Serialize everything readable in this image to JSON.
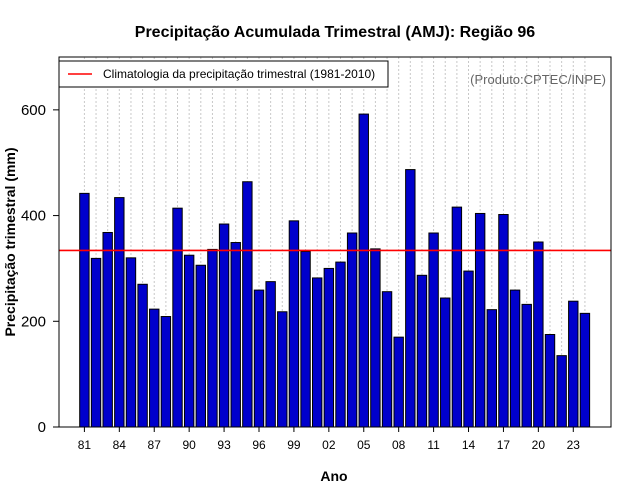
{
  "chart_data": {
    "type": "bar",
    "title": "Precipitação Acumulada Trimestral (AMJ): Região 96",
    "xlabel": "Ano",
    "ylabel": "Precipitação trimestral (mm)",
    "credit": "(Produto:CPTEC/INPE)",
    "ylim": [
      0,
      700
    ],
    "yticks": [
      0,
      200,
      400,
      600
    ],
    "ytick_labels": [
      "0",
      "200",
      "400",
      "600"
    ],
    "xtick_labels": [
      "81",
      "84",
      "87",
      "90",
      "93",
      "96",
      "99",
      "02",
      "05",
      "08",
      "11",
      "14",
      "17",
      "20",
      "23"
    ],
    "xtick_every": 3,
    "categories": [
      "81",
      "82",
      "83",
      "84",
      "85",
      "86",
      "87",
      "88",
      "89",
      "90",
      "91",
      "92",
      "93",
      "94",
      "95",
      "96",
      "97",
      "98",
      "99",
      "00",
      "01",
      "02",
      "03",
      "04",
      "05",
      "06",
      "07",
      "08",
      "09",
      "10",
      "11",
      "12",
      "13",
      "14",
      "15",
      "16",
      "17",
      "18",
      "19",
      "20",
      "21",
      "22",
      "23",
      "24"
    ],
    "values": [
      442,
      319,
      368,
      434,
      320,
      270,
      223,
      209,
      414,
      325,
      306,
      336,
      384,
      349,
      464,
      259,
      275,
      218,
      390,
      332,
      282,
      300,
      312,
      367,
      592,
      337,
      256,
      170,
      487,
      287,
      367,
      244,
      416,
      295,
      404,
      222,
      402,
      259,
      232,
      350,
      175,
      135,
      238,
      215
    ],
    "bar_color": "#0000CC",
    "climatology": {
      "label": "Climatologia da precipitação trimestral (1981-2010)",
      "value": 334,
      "color": "#FF0000"
    },
    "legend_position": "top-left",
    "grid": "vertical dotted"
  }
}
